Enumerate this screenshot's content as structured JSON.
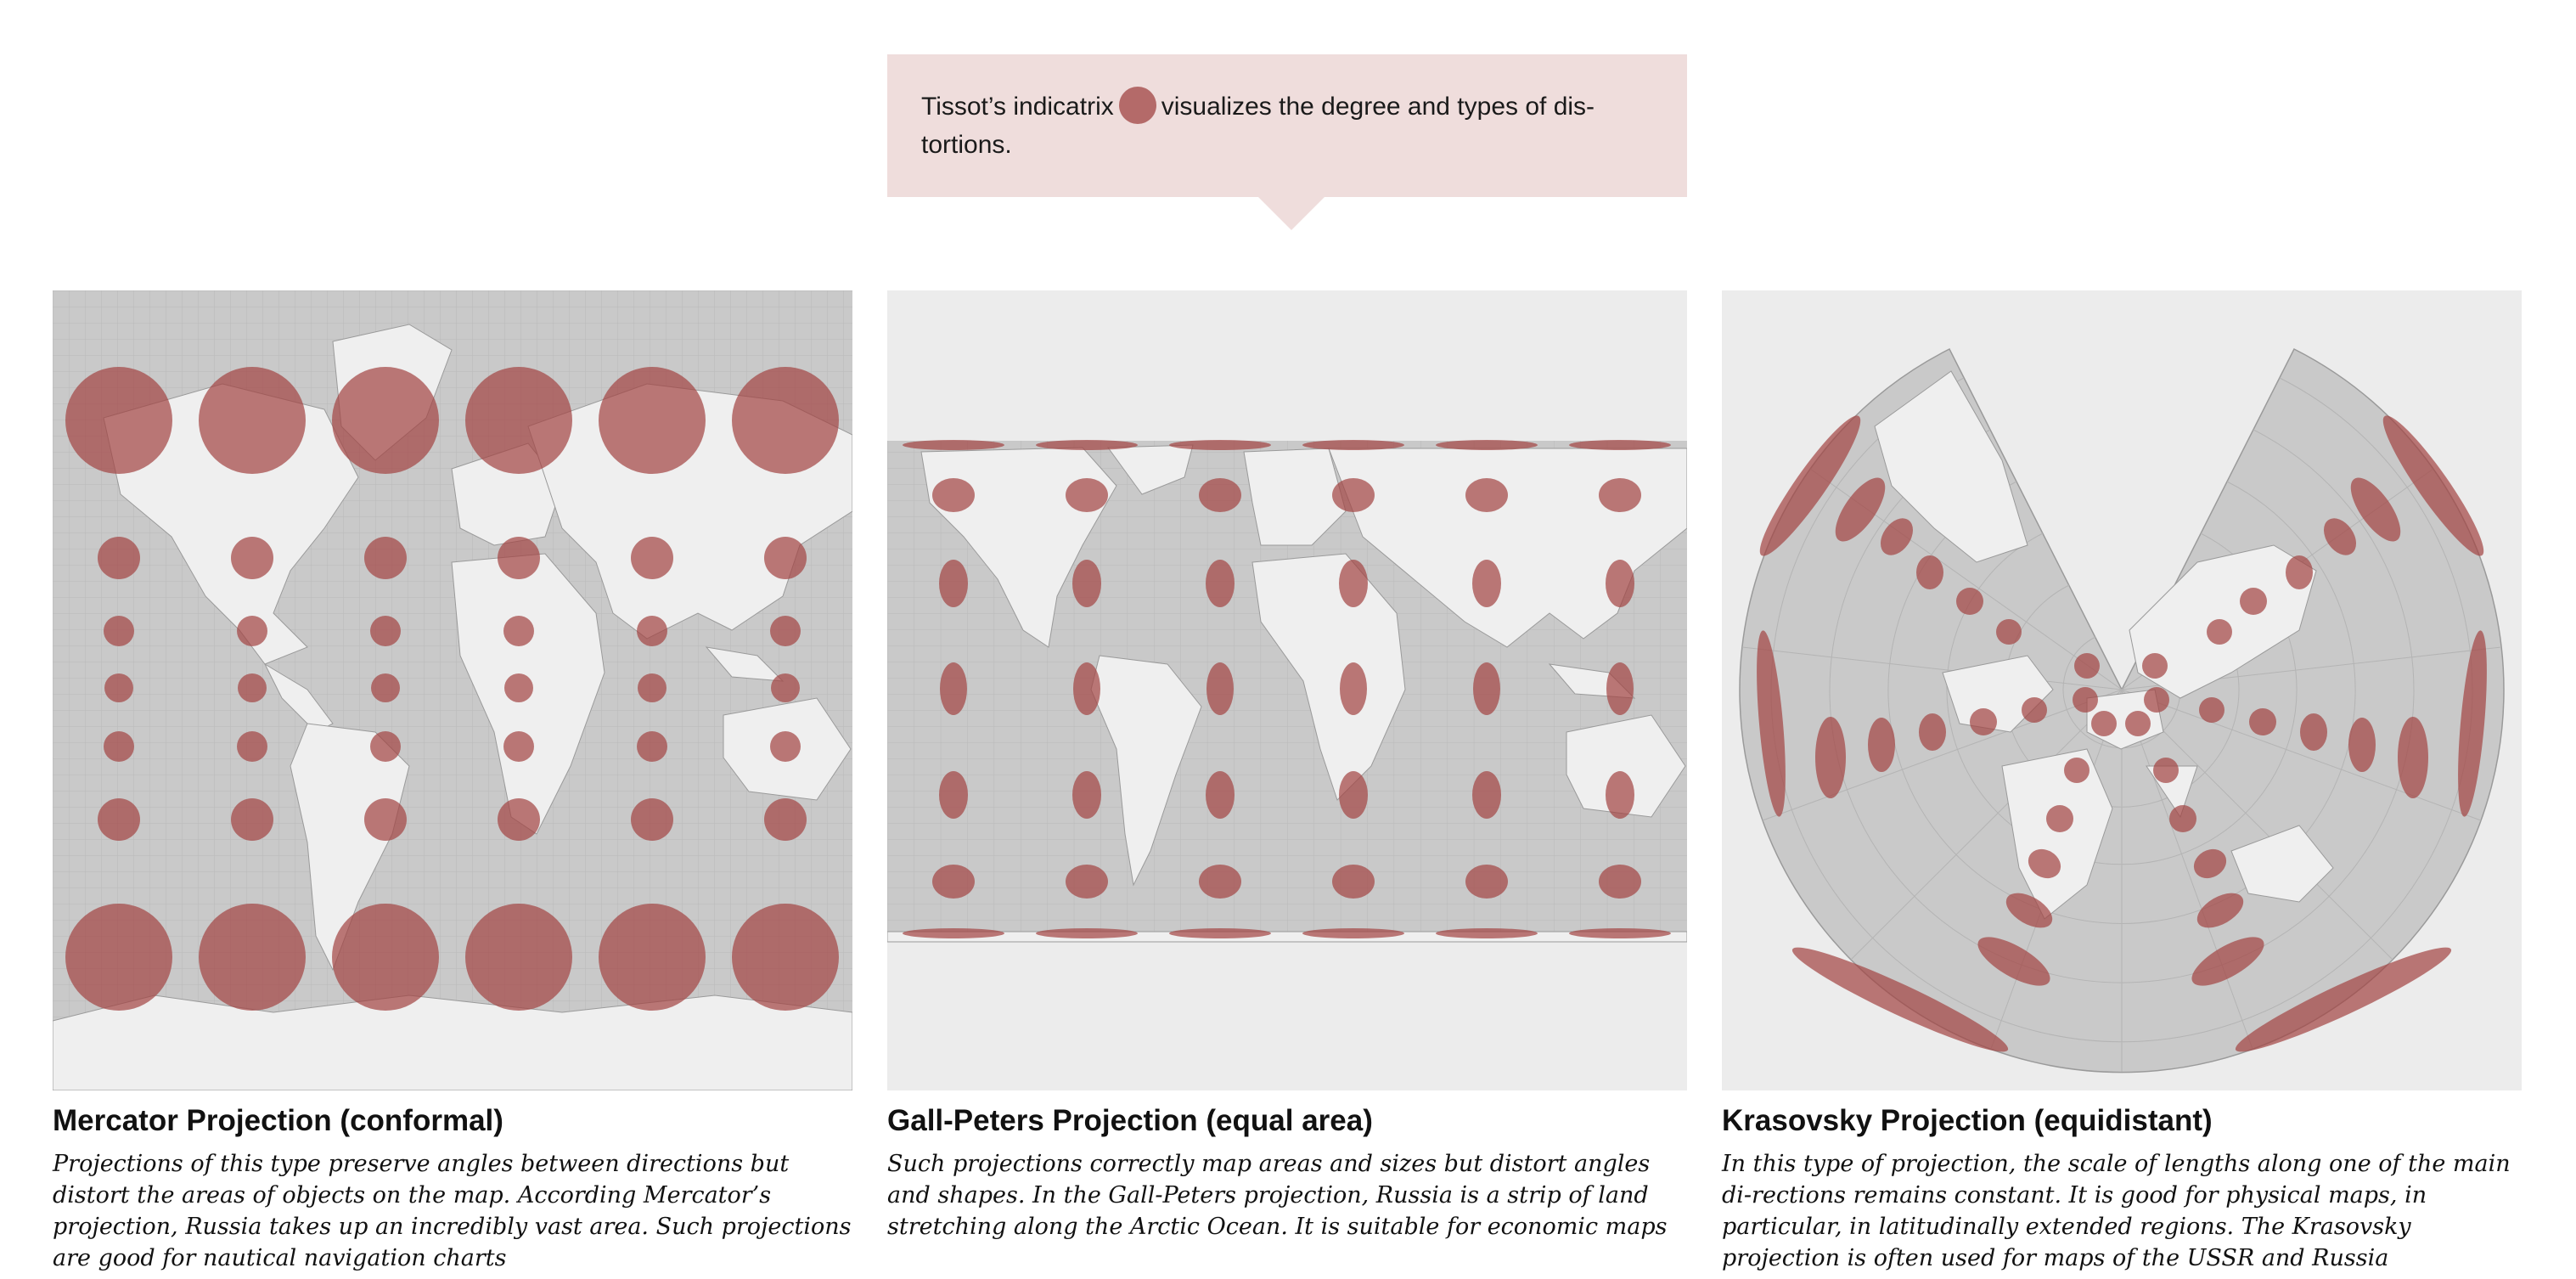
{
  "callout": {
    "text_before": "Tissot’s indicatrix",
    "text_after": "visualizes the degree and types of dis-tortions.",
    "icon": "tissot-circle-icon"
  },
  "colors": {
    "ocean": "#c9c9c9",
    "land": "#efefef",
    "panel_bg": "#ececec",
    "ellipse": "#a34342",
    "callout_bg": "#efdddc"
  },
  "projections": [
    {
      "title": "Mercator Projection (conformal)",
      "description": "Projections of this type preserve angles between directions but distort the areas of objects on the map. According Mercator’s projection, Russia takes up an incredibly vast area. Such projections are good for nautical navigation charts"
    },
    {
      "title": "Gall-Peters Projection (equal area)",
      "description": "Such projections correctly map areas and sizes but distort angles and shapes. In the Gall-Peters projection, Russia is a strip of land stretching along the Arctic Ocean. It is suitable for economic maps"
    },
    {
      "title": "Krasovsky Projection (equidistant)",
      "description": "In this type of projection, the scale of lengths along one of the main di-rections remains constant. It is good for physical maps, in particular, in latitudinally extended regions. The Krasovsky projection is often used for maps of the USSR and Russia"
    }
  ]
}
